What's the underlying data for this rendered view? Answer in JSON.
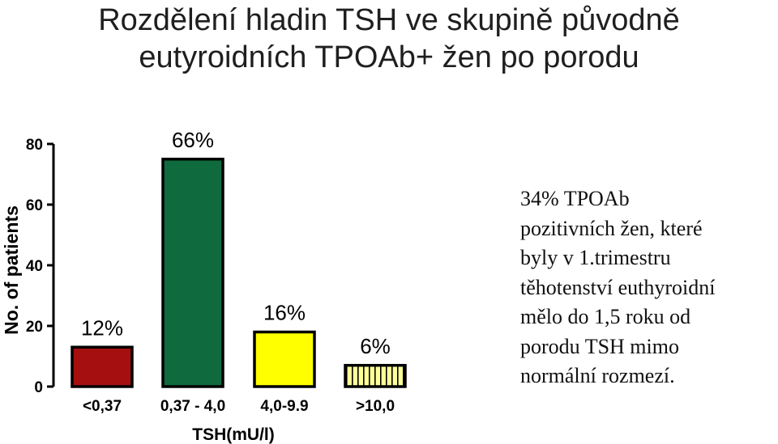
{
  "title": {
    "line1": "Rozdělení hladin TSH ve skupině původně",
    "line2": "eutyroidních TPOAb+ žen po porodu"
  },
  "chart_data": {
    "type": "bar",
    "categories": [
      "<0,37",
      "0,37 - 4,0",
      "4,0-9.9",
      ">10,0"
    ],
    "values": [
      13,
      75,
      18,
      7
    ],
    "labels": [
      "12%",
      "66%",
      "16%",
      "6%"
    ],
    "colors": [
      "#a50f0f",
      "#0f6b3e",
      "#ffff00",
      "#ffff99"
    ],
    "patterns": [
      "solid",
      "solid",
      "solid",
      "vertical-stripes"
    ],
    "xlabel": "TSH(mU/l)",
    "ylabel": "No. of patients",
    "ylim": [
      0,
      80
    ],
    "yticks": [
      0,
      20,
      40,
      60,
      80
    ],
    "grid": false
  },
  "side_text": [
    "34% TPOAb",
    "pozitivních žen, které",
    "byly v 1.trimestru",
    "těhotenství euthyroidní",
    "mělo do 1,5 roku od",
    "porodu TSH mimo",
    "normální rozmezí."
  ]
}
